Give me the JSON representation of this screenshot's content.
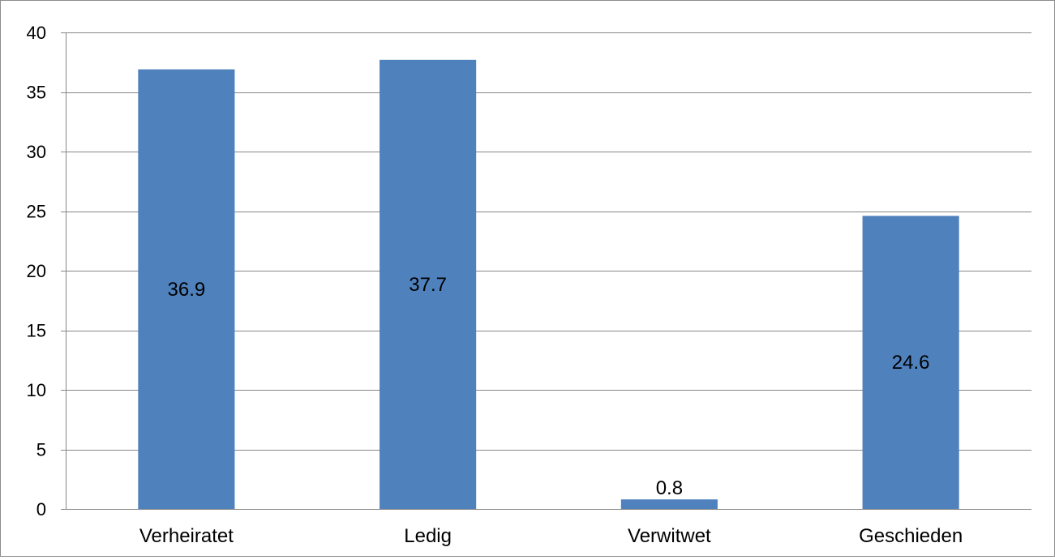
{
  "chart_data": {
    "type": "bar",
    "title": "",
    "xlabel": "",
    "ylabel": "",
    "categories": [
      "Verheiratet",
      "Ledig",
      "Verwitwet",
      "Geschieden"
    ],
    "values": [
      36.9,
      37.7,
      0.8,
      24.6
    ],
    "data_labels": [
      "36.9",
      "37.7",
      "0.8",
      "24.6"
    ],
    "ylim": [
      0,
      40
    ],
    "yticks": [
      "0",
      "5",
      "10",
      "15",
      "20",
      "25",
      "30",
      "35",
      "40"
    ],
    "grid": true,
    "legend": "none",
    "bar_color": "#4f81bd",
    "gridline_color": "#868686"
  }
}
